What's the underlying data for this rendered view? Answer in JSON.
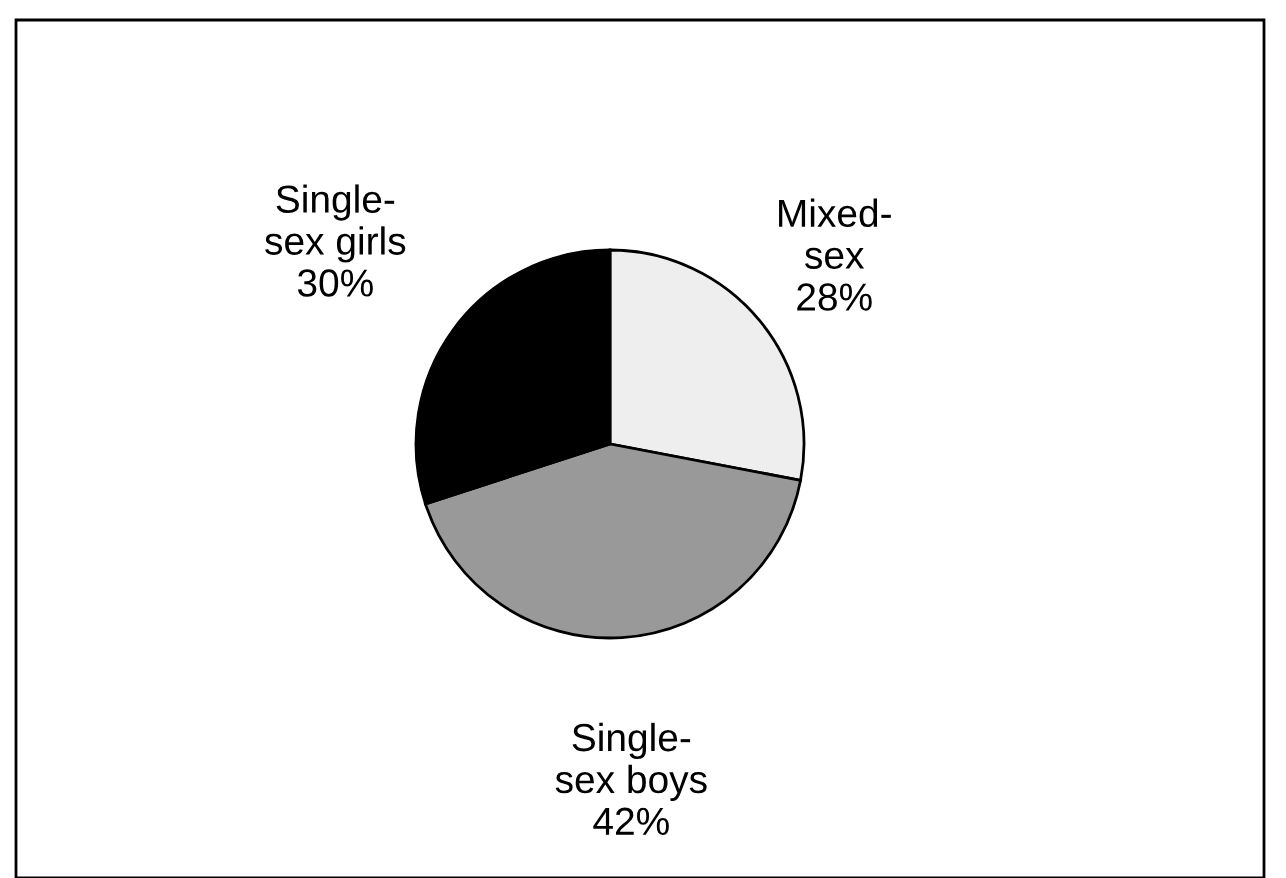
{
  "chart_data": {
    "type": "pie",
    "categories": [
      "Mixed-\nsex",
      "Single-\nsex boys",
      "Single-\nsex girls"
    ],
    "values": [
      28,
      42,
      30
    ],
    "value_labels": [
      "28%",
      "42%",
      "30%"
    ],
    "colors": [
      "#eeeeee",
      "#999999",
      "#000000"
    ],
    "legend": false
  }
}
